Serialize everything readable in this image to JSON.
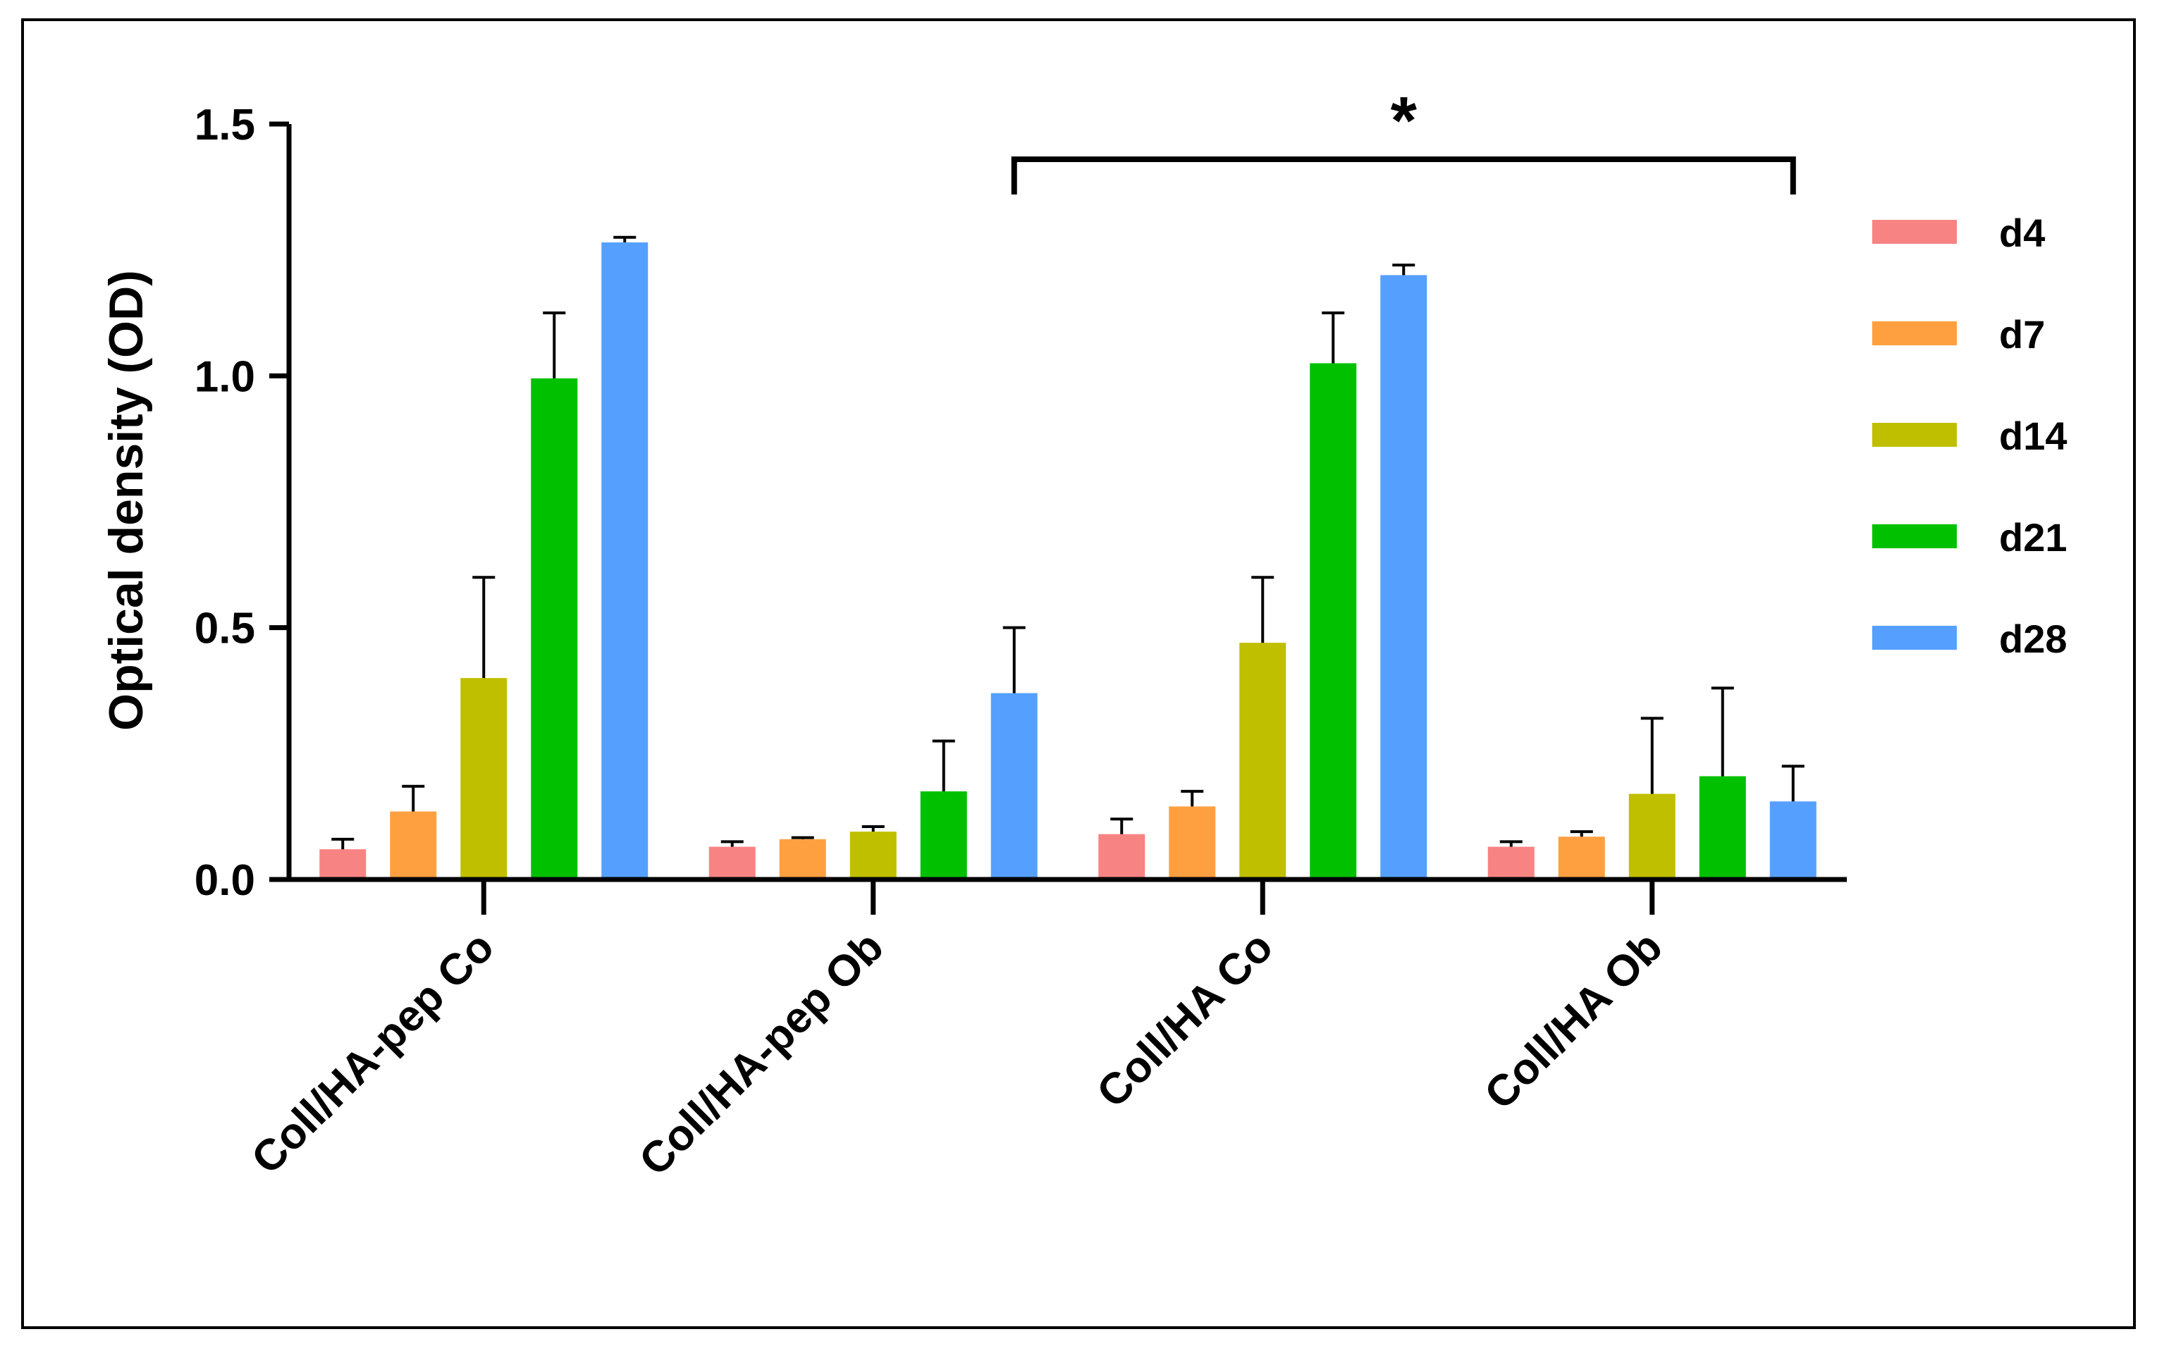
{
  "chart_data": {
    "type": "bar",
    "title": "",
    "xlabel": "",
    "ylabel": "Optical density (OD)",
    "ylim": [
      0,
      1.5
    ],
    "yticks": [
      "0.0",
      "0.5",
      "1.0",
      "1.5"
    ],
    "ytick_values": [
      0,
      0.5,
      1.0,
      1.5
    ],
    "grid": false,
    "legend_position": "right",
    "categories": [
      "Coll/HA-pep Co",
      "Coll/HA-pep Ob",
      "Coll/HA Co",
      "Coll/HA Ob"
    ],
    "series": [
      {
        "name": "d4",
        "color": "#F88383",
        "values": [
          0.06,
          0.065,
          0.09,
          0.065
        ],
        "errors": [
          0.02,
          0.01,
          0.03,
          0.01
        ]
      },
      {
        "name": "d7",
        "color": "#FFA040",
        "values": [
          0.135,
          0.08,
          0.145,
          0.085
        ],
        "errors": [
          0.05,
          0.003,
          0.03,
          0.01
        ]
      },
      {
        "name": "d14",
        "color": "#BFBF00",
        "values": [
          0.4,
          0.095,
          0.47,
          0.17
        ],
        "errors": [
          0.2,
          0.01,
          0.13,
          0.15
        ]
      },
      {
        "name": "d21",
        "color": "#00C000",
        "values": [
          0.995,
          0.175,
          1.025,
          0.205
        ],
        "errors": [
          0.13,
          0.1,
          0.1,
          0.175
        ]
      },
      {
        "name": "d28",
        "color": "#55A0FF",
        "values": [
          1.265,
          0.37,
          1.2,
          0.155
        ],
        "errors": [
          0.01,
          0.13,
          0.02,
          0.07
        ]
      }
    ],
    "annotations": [
      {
        "text": "*",
        "from_category": "Coll/HA-pep Ob",
        "from_series": "d28",
        "to_category": "Coll/HA Ob",
        "to_series": "d28"
      }
    ]
  }
}
